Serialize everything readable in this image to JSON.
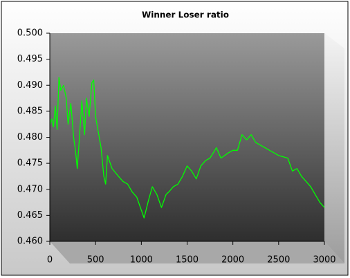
{
  "chart_data": {
    "type": "line",
    "title": "Winner Loser ratio",
    "x": [
      0,
      20,
      40,
      60,
      80,
      100,
      120,
      150,
      180,
      200,
      230,
      260,
      280,
      300,
      320,
      350,
      380,
      400,
      430,
      460,
      480,
      500,
      530,
      560,
      590,
      610,
      630,
      680,
      750,
      800,
      850,
      900,
      950,
      1000,
      1030,
      1080,
      1120,
      1170,
      1220,
      1270,
      1300,
      1350,
      1400,
      1450,
      1500,
      1550,
      1600,
      1650,
      1700,
      1750,
      1820,
      1870,
      1950,
      2000,
      2050,
      2100,
      2150,
      2200,
      2250,
      2300,
      2400,
      2500,
      2600,
      2650,
      2700,
      2750,
      2800,
      2850,
      2900,
      2950,
      3000
    ],
    "series": [
      {
        "color": "#00ff00",
        "values": [
          0.4825,
          0.4835,
          0.482,
          0.486,
          0.4815,
          0.4915,
          0.489,
          0.49,
          0.4875,
          0.4825,
          0.4865,
          0.48,
          0.4775,
          0.474,
          0.479,
          0.487,
          0.4805,
          0.4875,
          0.484,
          0.4905,
          0.491,
          0.484,
          0.481,
          0.478,
          0.4725,
          0.471,
          0.4765,
          0.474,
          0.4725,
          0.4715,
          0.471,
          0.4695,
          0.4685,
          0.466,
          0.4645,
          0.468,
          0.4705,
          0.469,
          0.4665,
          0.469,
          0.4695,
          0.4705,
          0.471,
          0.4725,
          0.4745,
          0.4735,
          0.472,
          0.4745,
          0.4755,
          0.476,
          0.478,
          0.476,
          0.477,
          0.4775,
          0.4775,
          0.4805,
          0.4795,
          0.4805,
          0.479,
          0.4785,
          0.4775,
          0.4765,
          0.476,
          0.4735,
          0.474,
          0.4725,
          0.4715,
          0.4705,
          0.469,
          0.4675,
          0.4665
        ]
      }
    ],
    "xlim": [
      0,
      3000
    ],
    "xticks": [
      0,
      500,
      1000,
      1500,
      2000,
      2500,
      3000
    ],
    "ylim": [
      0.46,
      0.5
    ],
    "yticks": [
      {
        "value": 0.46,
        "label": "0.460"
      },
      0.465,
      {
        "value": 0.47,
        "label": "0.470"
      },
      0.475,
      {
        "value": 0.48,
        "label": "0.480"
      },
      0.485,
      {
        "value": 0.49,
        "label": "0.490"
      },
      0.495,
      {
        "value": 0.5,
        "label": "0.500"
      }
    ]
  }
}
